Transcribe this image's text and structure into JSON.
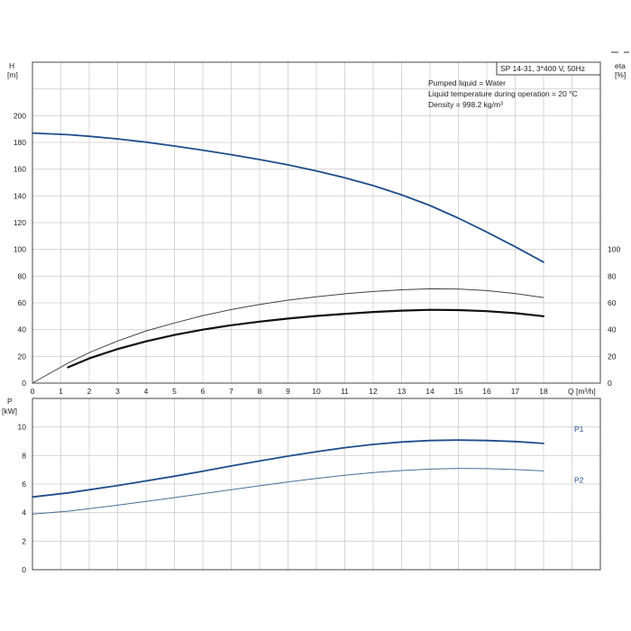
{
  "chart_data": [
    {
      "type": "line",
      "name": "head-efficiency",
      "title": "SP 14-31, 3*400 V, 50Hz",
      "notes": [
        "Pumped liquid = Water",
        "Liquid temperature during operation = 20 °C",
        "Density = 998.2 kg/m³"
      ],
      "xlabel": "Q [m³/h]",
      "ylabel_left": [
        "H",
        "[m]"
      ],
      "ylabel_right": [
        "eta",
        "[%]"
      ],
      "xlim": [
        0,
        20
      ],
      "ylim_left": [
        0,
        240
      ],
      "ylim_right": [
        0,
        240
      ],
      "x_ticks": [
        0,
        1,
        2,
        3,
        4,
        5,
        6,
        7,
        8,
        9,
        10,
        11,
        12,
        13,
        14,
        15,
        16,
        17,
        18
      ],
      "y_ticks_left": [
        0,
        20,
        40,
        60,
        80,
        100,
        120,
        140,
        160,
        180,
        200
      ],
      "y_ticks_right": [
        0,
        20,
        40,
        60,
        80,
        100
      ],
      "grid": true,
      "series": [
        {
          "color": "#1f4e8c",
          "width": 1.8,
          "x": [
            0,
            1.25,
            2,
            3,
            4,
            5,
            6,
            7,
            8,
            9,
            10,
            11,
            12,
            13,
            14,
            15,
            16,
            17,
            18
          ],
          "y": [
            187,
            185.8,
            184.6,
            182.6,
            180.2,
            177.3,
            174.2,
            170.8,
            167.2,
            163.2,
            158.7,
            153.6,
            147.7,
            140.8,
            132.8,
            123.4,
            113,
            102,
            90.5
          ]
        },
        {
          "color": "#444444",
          "width": 1.0,
          "x": [
            0,
            1.25,
            2,
            3,
            4,
            5,
            6,
            7,
            8,
            9,
            10,
            11,
            12,
            13,
            14,
            15,
            16,
            17,
            18
          ],
          "y": [
            0,
            15,
            22.8,
            31.5,
            39,
            45,
            50.5,
            55,
            58.8,
            62,
            64.5,
            66.8,
            68.5,
            69.8,
            70.5,
            70.4,
            69.2,
            67,
            64
          ]
        },
        {
          "color": "#111111",
          "width": 2.2,
          "x": [
            1.25,
            2,
            3,
            4,
            5,
            6,
            7,
            8,
            9,
            10,
            11,
            12,
            13,
            14,
            15,
            16,
            17,
            18
          ],
          "y": [
            11.8,
            18.5,
            25.5,
            31.2,
            36,
            40,
            43.3,
            46,
            48.3,
            50.2,
            51.8,
            53.2,
            54.2,
            54.8,
            54.6,
            53.8,
            52.3,
            50
          ]
        }
      ]
    },
    {
      "type": "line",
      "name": "power",
      "ylabel": [
        "P",
        "[kW]"
      ],
      "xlim": [
        0,
        20
      ],
      "ylim": [
        0,
        12
      ],
      "x_ticks": [
        0,
        1,
        2,
        3,
        4,
        5,
        6,
        7,
        8,
        9,
        10,
        11,
        12,
        13,
        14,
        15,
        16,
        17,
        18
      ],
      "y_ticks": [
        0,
        2,
        4,
        6,
        8,
        10
      ],
      "grid": true,
      "series": [
        {
          "name": "P1",
          "color": "#1f4e8c",
          "width": 1.8,
          "x": [
            0,
            1.25,
            2,
            3,
            4,
            5,
            6,
            7,
            8,
            9,
            10,
            11,
            12,
            13,
            14,
            15,
            16,
            17,
            18
          ],
          "y": [
            5.1,
            5.38,
            5.6,
            5.9,
            6.22,
            6.55,
            6.9,
            7.27,
            7.62,
            7.96,
            8.27,
            8.55,
            8.78,
            8.95,
            9.05,
            9.08,
            9.05,
            8.98,
            8.85
          ]
        },
        {
          "name": "P2",
          "color": "#4a6f9a",
          "width": 1.0,
          "x": [
            0,
            1.25,
            2,
            3,
            4,
            5,
            6,
            7,
            8,
            9,
            10,
            11,
            12,
            13,
            14,
            15,
            16,
            17,
            18
          ],
          "y": [
            3.9,
            4.1,
            4.28,
            4.52,
            4.78,
            5.05,
            5.33,
            5.6,
            5.88,
            6.15,
            6.4,
            6.62,
            6.8,
            6.95,
            7.05,
            7.1,
            7.08,
            7.02,
            6.92
          ]
        }
      ]
    }
  ]
}
